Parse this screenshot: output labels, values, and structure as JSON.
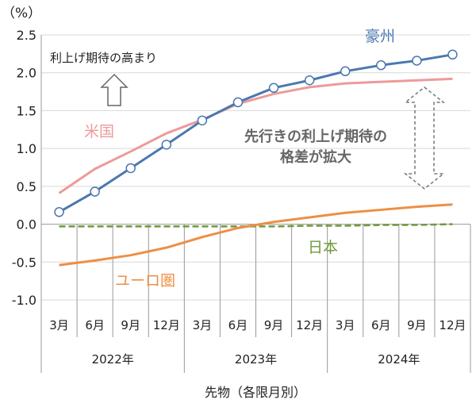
{
  "chart_data": {
    "type": "line",
    "ylabel": "（%）",
    "xlabel": "先物（各限月別）",
    "ylim": [
      -1.0,
      2.5
    ],
    "yticks": [
      "2.5",
      "2.0",
      "1.5",
      "1.0",
      "0.5",
      "0.0",
      "-0.5",
      "-1.0"
    ],
    "ytick_values": [
      2.5,
      2.0,
      1.5,
      1.0,
      0.5,
      0.0,
      -0.5,
      -1.0
    ],
    "grid": true,
    "categories": [
      "3月",
      "6月",
      "9月",
      "12月",
      "3月",
      "6月",
      "9月",
      "12月",
      "3月",
      "6月",
      "9月",
      "12月"
    ],
    "years": [
      "2022年",
      "2023年",
      "2024年"
    ],
    "series": [
      {
        "name": "豪州",
        "color": "#4a78b0",
        "marker": "circle",
        "dash": false,
        "values": [
          0.16,
          0.43,
          0.74,
          1.05,
          1.37,
          1.61,
          1.8,
          1.9,
          2.02,
          2.1,
          2.16,
          2.24
        ]
      },
      {
        "name": "米国",
        "color": "#ee9a9a",
        "marker": "none",
        "dash": false,
        "values": [
          0.41,
          0.73,
          0.96,
          1.2,
          1.38,
          1.59,
          1.72,
          1.81,
          1.86,
          1.88,
          1.9,
          1.92
        ]
      },
      {
        "name": "ユーロ圏",
        "color": "#ed8f45",
        "marker": "none",
        "dash": false,
        "values": [
          -0.54,
          -0.48,
          -0.41,
          -0.31,
          -0.17,
          -0.05,
          0.03,
          0.09,
          0.15,
          0.19,
          0.23,
          0.26
        ]
      },
      {
        "name": "日本",
        "color": "#6f9a3a",
        "marker": "none",
        "dash": true,
        "values": [
          -0.03,
          -0.03,
          -0.03,
          -0.03,
          -0.03,
          -0.03,
          -0.03,
          -0.02,
          -0.02,
          -0.01,
          -0.01,
          0.0
        ]
      }
    ],
    "annotations": {
      "rise": "利上げ期待の高まり",
      "gap_line1": "先行きの利上げ期待の",
      "gap_line2": "格差が拡大"
    }
  }
}
